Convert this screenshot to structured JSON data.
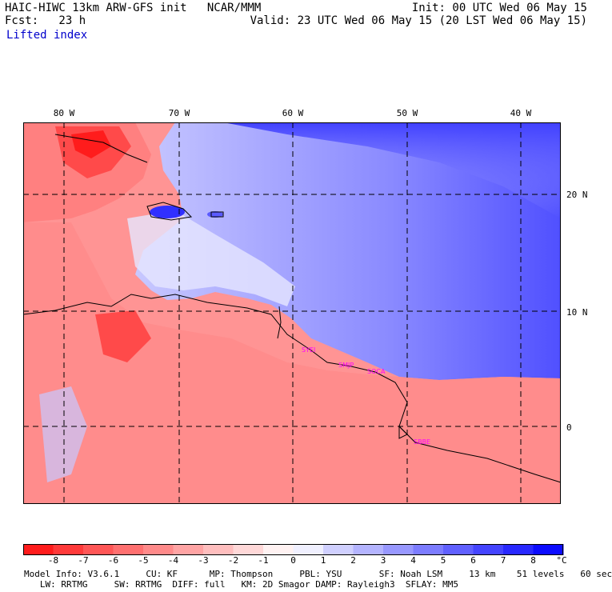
{
  "header": {
    "model_line": "HAIC-HIWC 13km ARW-GFS init   NCAR/MMM",
    "fcst_line": "Fcst:   23 h",
    "field_name": "Lifted index",
    "init_line": "Init: 00 UTC Wed 06 May 15",
    "valid_line": "Valid: 23 UTC Wed 06 May 15 (20 LST Wed 06 May 15)"
  },
  "axes": {
    "longitude_labels": [
      "80 W",
      "70 W",
      "60 W",
      "50 W",
      "40 W"
    ],
    "latitude_labels": [
      "20 N",
      "10 N",
      "0"
    ]
  },
  "stations": [
    "SYEI",
    "SMJP",
    "SOCA",
    "SBBE"
  ],
  "colorbar": {
    "labels": [
      "-8",
      "-7",
      "-6",
      "-5",
      "-4",
      "-3",
      "-2",
      "-1",
      "0",
      "1",
      "2",
      "3",
      "4",
      "5",
      "6",
      "7",
      "8"
    ],
    "unit": "°C",
    "colors": [
      "#ff1c1c",
      "#ff3a3a",
      "#ff5656",
      "#ff7070",
      "#ff8a8a",
      "#ffa4a4",
      "#ffbebe",
      "#ffd8d8",
      "#fff2f2",
      "#f0f0ff",
      "#d0d0ff",
      "#b4b4ff",
      "#9898ff",
      "#7c7cff",
      "#6060ff",
      "#4444ff",
      "#2828ff",
      "#0c0cff"
    ]
  },
  "footer": {
    "line1": "Model Info: V3.6.1     CU: KF      MP: Thompson     PBL: YSU       SF: Noah LSM     13 km    51 levels   60 sec",
    "line2": "   LW: RRTMG     SW: RRTMG  DIFF: full   KM: 2D Smagor DAMP: Rayleigh3  SFLAY: MM5"
  }
}
